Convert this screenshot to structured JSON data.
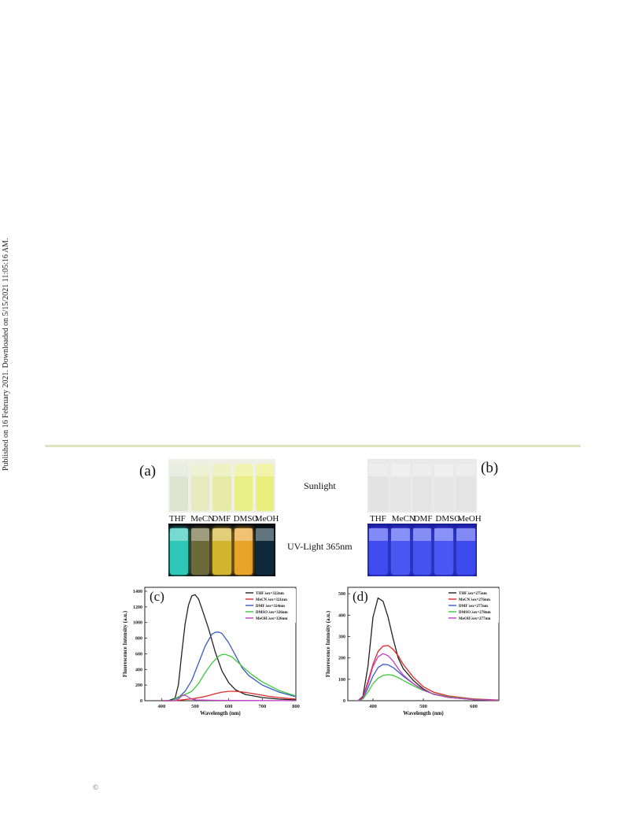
{
  "page": {
    "side_note": "Published on 16 February 2021. Downloaded on 5/15/2021 11:05:16 AM.",
    "copyright": "©"
  },
  "photos": {
    "label_a": "(a)",
    "label_b": "(b)",
    "sunlight": "Sunlight",
    "uv": "UV-Light 365nm",
    "solvents": [
      "THF",
      "MeCN",
      "DMF",
      "DMSO",
      "MeOH"
    ],
    "colors": {
      "a_sun": [
        "#dfe4d2",
        "#e5ebbf",
        "#e6eca6",
        "#e9ee88",
        "#eaee7c"
      ],
      "a_uv": [
        "#2fc8b8",
        "#6a6a3a",
        "#d3b430",
        "#e8a428",
        "#0e2a3a"
      ],
      "b_sun": [
        "#e3e3e3",
        "#e6e6e6",
        "#e4e4e4",
        "#e6e6e6",
        "#e4e4e4"
      ],
      "b_uv": [
        "#3f4cf0",
        "#4957f2",
        "#4452f0",
        "#4a58f3",
        "#3d4aee"
      ]
    }
  },
  "chart_data": [
    {
      "type": "line",
      "panel_label": "(c)",
      "xlabel": "Wavelength (nm)",
      "ylabel": "Fluorescence Intensity (a.u.)",
      "xlim": [
        350,
        800
      ],
      "ylim": [
        0,
        1450
      ],
      "xticks": [
        400,
        500,
        600,
        700,
        800
      ],
      "yticks": [
        0,
        200,
        400,
        600,
        800,
        1000,
        1200,
        1400
      ],
      "legend_position": "top-right",
      "series": [
        {
          "name": "THF λex=322nm",
          "color": "#222222",
          "x": [
            400,
            420,
            440,
            450,
            460,
            470,
            480,
            490,
            500,
            510,
            520,
            540,
            560,
            580,
            600,
            620,
            650,
            700,
            750,
            800
          ],
          "y": [
            0,
            0,
            30,
            200,
            600,
            980,
            1220,
            1340,
            1355,
            1300,
            1180,
            920,
            620,
            380,
            230,
            140,
            80,
            40,
            20,
            10
          ]
        },
        {
          "name": "MeCN λex=321nm",
          "color": "#e02828",
          "x": [
            400,
            440,
            460,
            480,
            500,
            520,
            540,
            560,
            580,
            600,
            620,
            640,
            660,
            680,
            700,
            720,
            750,
            800
          ],
          "y": [
            0,
            0,
            10,
            20,
            30,
            45,
            65,
            90,
            110,
            120,
            120,
            112,
            100,
            85,
            70,
            55,
            40,
            20
          ]
        },
        {
          "name": "DMF λex=324nm",
          "color": "#3a5ac8",
          "x": [
            400,
            430,
            450,
            470,
            490,
            510,
            530,
            550,
            560,
            570,
            580,
            600,
            620,
            640,
            660,
            700,
            750,
            800
          ],
          "y": [
            0,
            0,
            40,
            120,
            260,
            480,
            700,
            850,
            875,
            878,
            860,
            740,
            580,
            420,
            320,
            200,
            110,
            50
          ]
        },
        {
          "name": "DMSO λex=326nm",
          "color": "#3cc83c",
          "x": [
            400,
            430,
            450,
            470,
            490,
            510,
            530,
            550,
            570,
            580,
            590,
            610,
            630,
            650,
            670,
            700,
            750,
            800
          ],
          "y": [
            0,
            0,
            50,
            80,
            120,
            220,
            360,
            480,
            570,
            590,
            592,
            560,
            480,
            400,
            330,
            240,
            130,
            60
          ]
        },
        {
          "name": "MeOH λex=326nm",
          "color": "#c040c0",
          "x": [
            400,
            440,
            450,
            460,
            470,
            480,
            490,
            500,
            520,
            560,
            600,
            700,
            800
          ],
          "y": [
            0,
            0,
            20,
            60,
            70,
            45,
            20,
            10,
            8,
            5,
            3,
            2,
            1
          ]
        }
      ]
    },
    {
      "type": "line",
      "panel_label": "(d)",
      "xlabel": "Wavelength (nm)",
      "ylabel": "Fluorescence Intensity (a.u.)",
      "xlim": [
        350,
        650
      ],
      "ylim": [
        0,
        530
      ],
      "xticks": [
        400,
        500,
        600
      ],
      "yticks": [
        0,
        100,
        200,
        300,
        400,
        500
      ],
      "legend_position": "top-right",
      "series": [
        {
          "name": "THF λex=275nm",
          "color": "#222222",
          "x": [
            370,
            380,
            390,
            400,
            410,
            420,
            430,
            440,
            450,
            460,
            480,
            500,
            520,
            550,
            600,
            650
          ],
          "y": [
            0,
            20,
            160,
            390,
            480,
            465,
            390,
            290,
            200,
            150,
            95,
            55,
            30,
            15,
            5,
            2
          ]
        },
        {
          "name": "MeCN λex=276nm",
          "color": "#e02828",
          "x": [
            370,
            380,
            390,
            400,
            410,
            420,
            430,
            440,
            450,
            460,
            480,
            500,
            520,
            550,
            600,
            650
          ],
          "y": [
            0,
            15,
            90,
            170,
            230,
            255,
            258,
            240,
            210,
            170,
            110,
            65,
            40,
            22,
            8,
            3
          ]
        },
        {
          "name": "DMF λex=277nm",
          "color": "#3a5ac8",
          "x": [
            370,
            380,
            390,
            400,
            410,
            420,
            430,
            440,
            450,
            460,
            480,
            500,
            520,
            550,
            600,
            650
          ],
          "y": [
            0,
            10,
            60,
            115,
            155,
            170,
            168,
            155,
            135,
            115,
            80,
            50,
            32,
            18,
            6,
            2
          ]
        },
        {
          "name": "DMSO λex=278nm",
          "color": "#3cc83c",
          "x": [
            370,
            380,
            390,
            400,
            410,
            420,
            430,
            440,
            450,
            460,
            480,
            500,
            520,
            550,
            600,
            650
          ],
          "y": [
            0,
            8,
            40,
            80,
            105,
            118,
            122,
            118,
            108,
            95,
            70,
            48,
            32,
            18,
            6,
            2
          ]
        },
        {
          "name": "MeOH λex=277nm",
          "color": "#c040c0",
          "x": [
            370,
            380,
            390,
            400,
            410,
            420,
            430,
            440,
            450,
            460,
            480,
            500,
            520,
            550,
            600,
            650
          ],
          "y": [
            0,
            12,
            80,
            160,
            205,
            220,
            210,
            185,
            150,
            120,
            80,
            50,
            30,
            15,
            5,
            2
          ]
        }
      ]
    }
  ]
}
